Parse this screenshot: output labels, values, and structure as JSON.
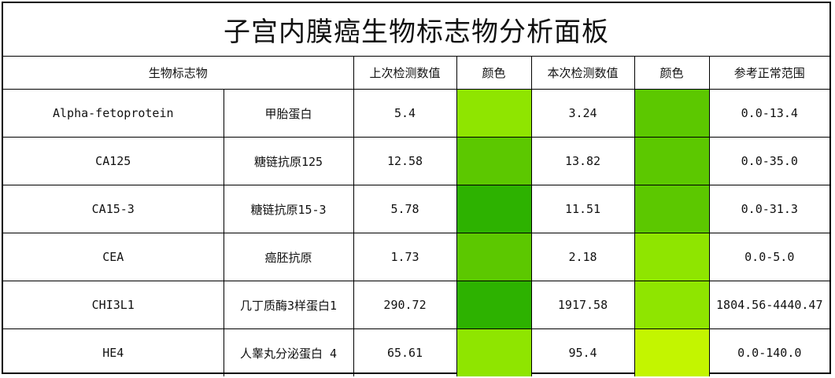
{
  "title": "子宫内膜癌生物标志物分析面板",
  "headers": {
    "biomarker": "生物标志物",
    "previous_value": "上次检测数值",
    "previous_color": "颜色",
    "current_value": "本次检测数值",
    "current_color": "颜色",
    "reference_range": "参考正常范围"
  },
  "rows": [
    {
      "name_en": "Alpha-fetoprotein",
      "name_cn": "甲胎蛋白",
      "previous": "5.4",
      "previous_color": "#8FE500",
      "current": "3.24",
      "current_color": "#5CC800",
      "range": "0.0-13.4"
    },
    {
      "name_en": "CA125",
      "name_cn": "糖链抗原125",
      "previous": "12.58",
      "previous_color": "#5CC800",
      "current": "13.82",
      "current_color": "#5CC800",
      "range": "0.0-35.0"
    },
    {
      "name_en": "CA15-3",
      "name_cn": "糖链抗原15-3",
      "previous": "5.78",
      "previous_color": "#2DB200",
      "current": "11.51",
      "current_color": "#5CC800",
      "range": "0.0-31.3"
    },
    {
      "name_en": "CEA",
      "name_cn": "癌胚抗原",
      "previous": "1.73",
      "previous_color": "#5CC800",
      "current": "2.18",
      "current_color": "#8FE500",
      "range": "0.0-5.0"
    },
    {
      "name_en": "CHI3L1",
      "name_cn": "几丁质酶3样蛋白1",
      "previous": "290.72",
      "previous_color": "#2DB200",
      "current": "1917.58",
      "current_color": "#8FE500",
      "range": "1804.56-4440.47"
    },
    {
      "name_en": "HE4",
      "name_cn": "人睾丸分泌蛋白 4",
      "previous": "65.61",
      "previous_color": "#8FE500",
      "current": "95.4",
      "current_color": "#C3F500",
      "range": "0.0-140.0"
    }
  ]
}
